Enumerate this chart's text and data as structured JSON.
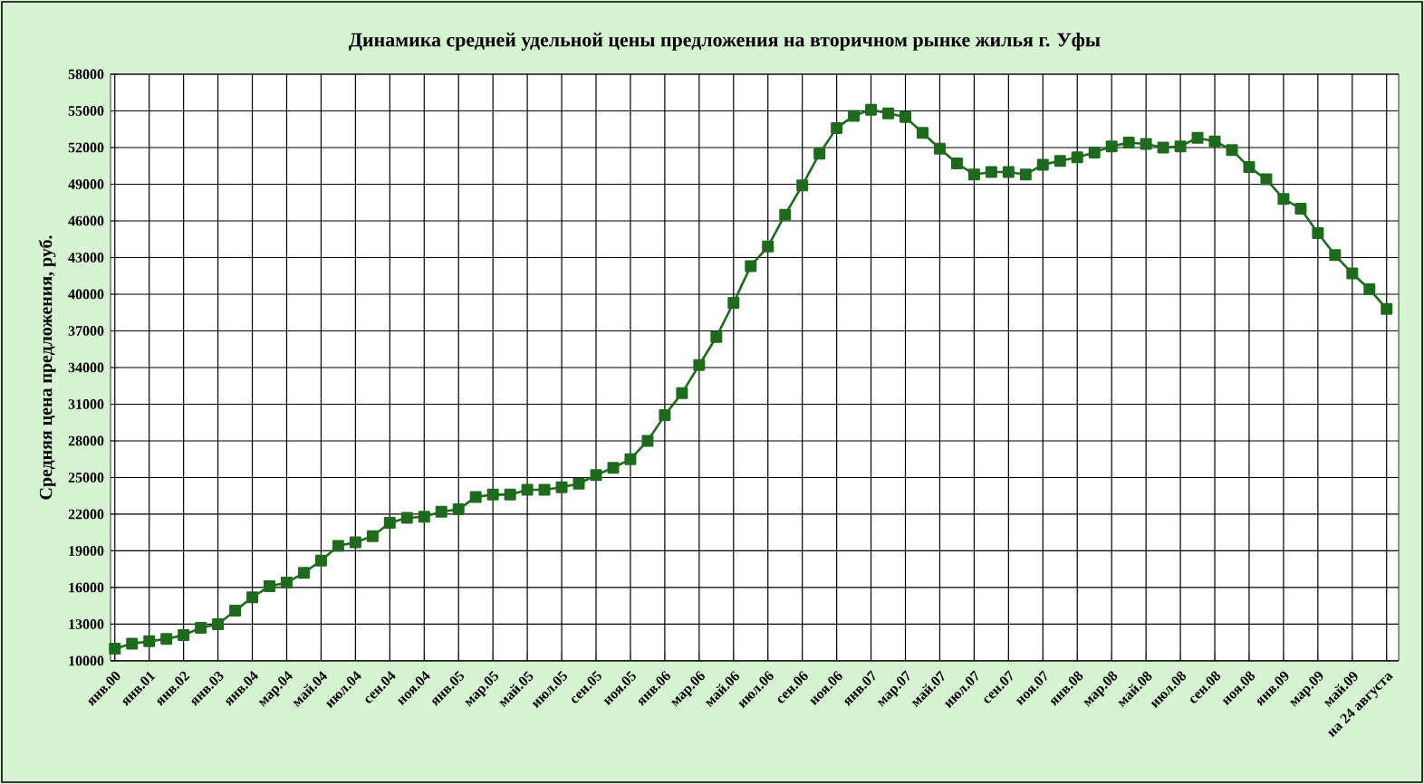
{
  "chart_data": {
    "type": "line",
    "title": "Динамика средней удельной цены предложения на вторичном рынке жилья г. Уфы",
    "ylabel": "Средняя цена предложения, руб.",
    "categories": [
      "янв.00",
      null,
      "янв.01",
      null,
      "янв.02",
      null,
      "янв.03",
      null,
      "янв.04",
      null,
      "мар.04",
      null,
      "май.04",
      null,
      "июл.04",
      null,
      "сен.04",
      null,
      "ноя.04",
      null,
      "янв.05",
      null,
      "мар.05",
      null,
      "май.05",
      null,
      "июл.05",
      null,
      "сен.05",
      null,
      "ноя.05",
      null,
      "янв.06",
      null,
      "мар.06",
      null,
      "май.06",
      null,
      "июл.06",
      null,
      "сен.06",
      null,
      "ноя.06",
      null,
      "янв.07",
      null,
      "мар.07",
      null,
      "май.07",
      null,
      "июл.07",
      null,
      "сен.07",
      null,
      "ноя.07",
      null,
      "янв.08",
      null,
      "мар.08",
      null,
      "май.08",
      null,
      "июл.08",
      null,
      "сен.08",
      null,
      "ноя.08",
      null,
      "янв.09",
      null,
      "мар.09",
      null,
      "май.09",
      null,
      "на 24 августа"
    ],
    "series": [
      {
        "color": "#1e6b1e",
        "values": [
          11000,
          11400,
          11600,
          11800,
          12100,
          12700,
          13000,
          14100,
          15200,
          16100,
          16400,
          17200,
          18200,
          19400,
          19700,
          20200,
          21300,
          21700,
          21800,
          22200,
          22400,
          23400,
          23600,
          23600,
          24000,
          24000,
          24200,
          24500,
          25200,
          25800,
          26500,
          28000,
          30100,
          31900,
          34200,
          36500,
          39300,
          42300,
          43900,
          46500,
          48900,
          51500,
          53600,
          54600,
          55100,
          54800,
          54500,
          53200,
          51900,
          50700,
          49800,
          50000,
          50000,
          49800,
          50600,
          50900,
          51200,
          51600,
          52100,
          52400,
          52300,
          52000,
          52100,
          52800,
          52500,
          51800,
          50400,
          49400,
          47800,
          47000,
          45000,
          43200,
          41700,
          40400,
          38800
        ]
      }
    ],
    "ylim": [
      10000,
      58000
    ],
    "yticks": [
      10000,
      13000,
      16000,
      19000,
      22000,
      25000,
      28000,
      31000,
      34000,
      37000,
      40000,
      43000,
      46000,
      49000,
      52000,
      55000,
      58000
    ],
    "grid": true,
    "marker": "square",
    "line_style": "solid"
  }
}
